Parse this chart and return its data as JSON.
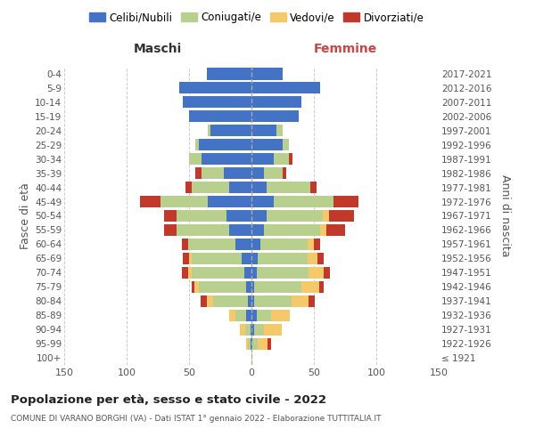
{
  "age_groups": [
    "100+",
    "95-99",
    "90-94",
    "85-89",
    "80-84",
    "75-79",
    "70-74",
    "65-69",
    "60-64",
    "55-59",
    "50-54",
    "45-49",
    "40-44",
    "35-39",
    "30-34",
    "25-29",
    "20-24",
    "15-19",
    "10-14",
    "5-9",
    "0-4"
  ],
  "birth_years": [
    "≤ 1921",
    "1922-1926",
    "1927-1931",
    "1932-1936",
    "1937-1941",
    "1942-1946",
    "1947-1951",
    "1952-1956",
    "1957-1961",
    "1962-1966",
    "1967-1971",
    "1972-1976",
    "1977-1981",
    "1982-1986",
    "1987-1991",
    "1992-1996",
    "1997-2001",
    "2002-2006",
    "2007-2011",
    "2012-2016",
    "2017-2021"
  ],
  "maschi_celibi": [
    0,
    1,
    1,
    4,
    3,
    4,
    6,
    8,
    13,
    18,
    20,
    35,
    18,
    22,
    40,
    42,
    33,
    50,
    55,
    58,
    36
  ],
  "maschi_coniugati": [
    0,
    2,
    4,
    9,
    28,
    38,
    42,
    40,
    38,
    42,
    40,
    38,
    30,
    18,
    10,
    3,
    2,
    0,
    0,
    0,
    0
  ],
  "maschi_vedovi": [
    0,
    1,
    4,
    5,
    5,
    4,
    3,
    2,
    0,
    0,
    0,
    0,
    0,
    0,
    0,
    0,
    0,
    0,
    0,
    0,
    0
  ],
  "maschi_divorziati": [
    0,
    0,
    0,
    0,
    5,
    2,
    5,
    5,
    5,
    10,
    10,
    16,
    5,
    5,
    0,
    0,
    0,
    0,
    0,
    0,
    0
  ],
  "femmine_nubili": [
    0,
    1,
    2,
    4,
    2,
    2,
    4,
    5,
    7,
    10,
    12,
    18,
    12,
    10,
    18,
    25,
    20,
    38,
    40,
    55,
    25
  ],
  "femmine_coniugate": [
    0,
    4,
    8,
    12,
    30,
    38,
    42,
    40,
    38,
    45,
    45,
    48,
    35,
    15,
    12,
    5,
    5,
    0,
    0,
    0,
    0
  ],
  "femmine_vedove": [
    1,
    8,
    14,
    15,
    14,
    14,
    12,
    8,
    5,
    5,
    5,
    0,
    0,
    0,
    0,
    0,
    0,
    0,
    0,
    0,
    0
  ],
  "femmine_divorziate": [
    0,
    3,
    0,
    0,
    5,
    4,
    5,
    5,
    5,
    15,
    20,
    20,
    5,
    3,
    3,
    0,
    0,
    0,
    0,
    0,
    0
  ],
  "color_celibi": "#4472c4",
  "color_coniugati": "#b8cf8e",
  "color_vedovi": "#f5c96a",
  "color_divorziati": "#c0392b",
  "title": "Popolazione per età, sesso e stato civile - 2022",
  "subtitle": "COMUNE DI VARANO BORGHI (VA) - Dati ISTAT 1° gennaio 2022 - Elaborazione TUTTITALIA.IT",
  "legend_labels": [
    "Celibi/Nubili",
    "Coniugati/e",
    "Vedovi/e",
    "Divorziati/e"
  ],
  "xlabel_left": "Maschi",
  "xlabel_right": "Femmine",
  "ylabel_left": "Fasce di età",
  "ylabel_right": "Anni di nascita",
  "xlim": 150
}
